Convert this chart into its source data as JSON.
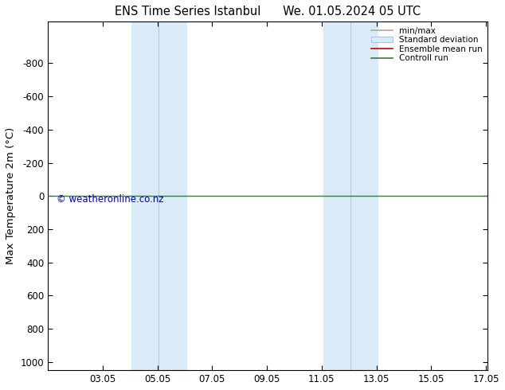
{
  "title": "ENS Time Series Istanbul      We. 01.05.2024 05 UTC",
  "ylabel": "Max Temperature 2m (°C)",
  "ylim": [
    -1050,
    1050
  ],
  "yticks": [
    -800,
    -600,
    -400,
    -200,
    0,
    200,
    400,
    600,
    800,
    1000
  ],
  "xlim": [
    1.0,
    17.05
  ],
  "x_tick_positions": [
    3,
    5,
    7,
    9,
    11,
    13,
    15,
    17
  ],
  "x_tick_labels": [
    "03.05",
    "05.05",
    "07.05",
    "09.05",
    "11.05",
    "13.05",
    "15.05",
    "17.05"
  ],
  "shaded_bands": [
    {
      "start": 4.05,
      "end": 6.05
    },
    {
      "start": 11.05,
      "end": 13.05
    }
  ],
  "band_color": "#daeaf7",
  "band_line_color": "#a8c8e8",
  "green_line_y": 0,
  "green_line_color": "#3a7a3a",
  "watermark": "© weatheronline.co.nz",
  "watermark_color": "#0000cc",
  "legend_labels": [
    "min/max",
    "Standard deviation",
    "Ensemble mean run",
    "Controll run"
  ],
  "legend_line_colors": [
    "#aaaaaa",
    "#bbbbbb",
    "#cc0000",
    "#3a7a3a"
  ],
  "background_color": "#ffffff",
  "tick_label_fontsize": 8.5,
  "axis_label_fontsize": 9.5,
  "title_fontsize": 10.5
}
